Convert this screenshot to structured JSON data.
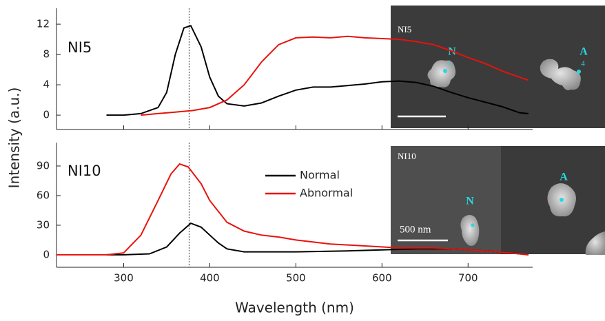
{
  "chart_data": [
    {
      "type": "line",
      "label": "NI5",
      "ylabel": "Intensity (a.u.)",
      "xlim": [
        222,
        775
      ],
      "xticks": [
        300,
        400,
        500,
        600,
        700
      ],
      "ylim": [
        -1.9,
        14.1
      ],
      "yticks": [
        0,
        4,
        8,
        12
      ],
      "vline": 376,
      "series": [
        {
          "name": "Normal",
          "color": "#000000",
          "x": [
            280,
            300,
            320,
            340,
            350,
            360,
            370,
            378,
            390,
            400,
            410,
            420,
            440,
            460,
            480,
            500,
            520,
            540,
            560,
            580,
            600,
            620,
            640,
            660,
            680,
            700,
            720,
            740,
            760,
            770
          ],
          "values": [
            0,
            0,
            0.2,
            1,
            3,
            8,
            11.5,
            11.8,
            9,
            5,
            2.5,
            1.5,
            1.2,
            1.6,
            2.5,
            3.3,
            3.7,
            3.7,
            3.9,
            4.1,
            4.4,
            4.5,
            4.3,
            3.8,
            3,
            2.3,
            1.7,
            1.1,
            0.3,
            0.2
          ]
        },
        {
          "name": "Abnormal",
          "color": "#e8120c",
          "x": [
            320,
            340,
            360,
            380,
            400,
            420,
            440,
            460,
            480,
            500,
            520,
            540,
            560,
            580,
            600,
            620,
            640,
            660,
            680,
            700,
            720,
            740,
            760,
            770
          ],
          "values": [
            0,
            0.2,
            0.4,
            0.6,
            1,
            2,
            4,
            7,
            9.3,
            10.2,
            10.3,
            10.2,
            10.4,
            10.2,
            10.1,
            10,
            9.7,
            9.3,
            8.5,
            7.6,
            6.8,
            5.8,
            5,
            4.6
          ]
        }
      ]
    },
    {
      "type": "line",
      "label": "NI10",
      "xlabel": "Wavelength (nm)",
      "legend": "upper right",
      "xlim": [
        222,
        775
      ],
      "xticks": [
        300,
        400,
        500,
        600,
        700
      ],
      "ylim": [
        -12.6,
        113.7
      ],
      "yticks": [
        0,
        30,
        60,
        90
      ],
      "vline": 376,
      "series": [
        {
          "name": "Normal",
          "color": "#000000",
          "x": [
            280,
            300,
            330,
            350,
            365,
            378,
            390,
            400,
            410,
            420,
            440,
            500,
            560,
            600,
            640,
            680,
            720,
            760,
            770
          ],
          "values": [
            0,
            0,
            1,
            8,
            22,
            32,
            28,
            20,
            12,
            6,
            3,
            3,
            4,
            5,
            6,
            6,
            4,
            1,
            0
          ]
        },
        {
          "name": "Abnormal",
          "color": "#e8120c",
          "x": [
            222,
            280,
            300,
            320,
            340,
            355,
            365,
            375,
            390,
            400,
            420,
            440,
            460,
            480,
            500,
            540,
            580,
            620,
            660,
            680,
            720,
            760,
            770
          ],
          "values": [
            0,
            0,
            2,
            20,
            55,
            82,
            92,
            89,
            72,
            55,
            33,
            24,
            20,
            18,
            15,
            11,
            9,
            7,
            7,
            6,
            4,
            1,
            0
          ]
        }
      ]
    }
  ],
  "images": [
    {
      "title": "NI5",
      "left_marker": "N",
      "left_index": "1",
      "right_marker": "A",
      "right_index": "4"
    },
    {
      "title": "NI10",
      "left_marker": "N",
      "right_marker": "A",
      "scale": "500 nm"
    }
  ]
}
